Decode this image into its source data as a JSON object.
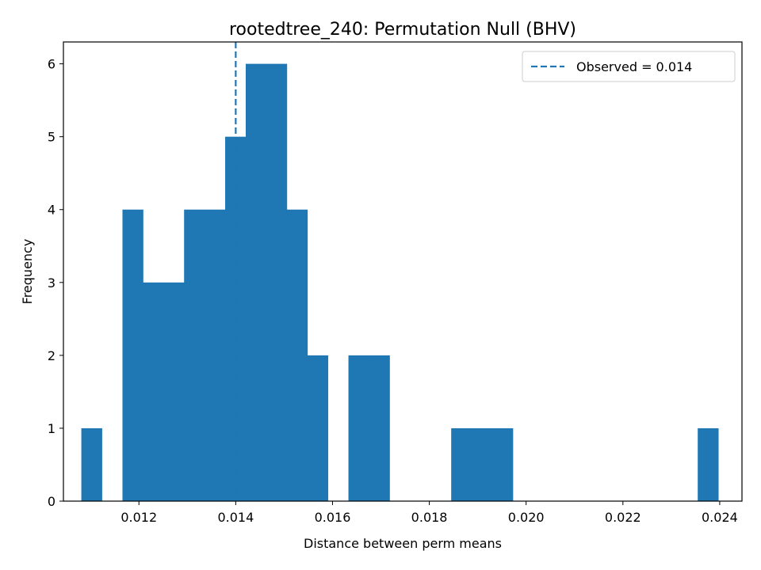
{
  "chart_data": {
    "type": "bar",
    "subtype": "histogram",
    "title": "rootedtree_240: Permutation Null (BHV)",
    "xlabel": "Distance between perm means",
    "ylabel": "Frequency",
    "xlim": [
      0.01044,
      0.02446
    ],
    "ylim": [
      0,
      6.3
    ],
    "xticks": [
      0.012,
      0.014,
      0.016,
      0.018,
      0.02,
      0.022,
      0.024
    ],
    "xtick_labels": [
      "0.012",
      "0.014",
      "0.016",
      "0.018",
      "0.020",
      "0.022",
      "0.024"
    ],
    "yticks": [
      0,
      1,
      2,
      3,
      4,
      5,
      6
    ],
    "ytick_labels": [
      "0",
      "1",
      "2",
      "3",
      "4",
      "5",
      "6"
    ],
    "bar_color": "#1f77b4",
    "bin_width": 0.0004245,
    "bin_starts": [
      0.01081,
      0.011235,
      0.01166,
      0.012084,
      0.012509,
      0.012933,
      0.013358,
      0.013782,
      0.014207,
      0.014631,
      0.015056,
      0.01548,
      0.015905,
      0.016329,
      0.016754,
      0.017178,
      0.017603,
      0.018027,
      0.018452,
      0.018876,
      0.019301,
      0.019725,
      0.02015,
      0.020574,
      0.020999,
      0.021423,
      0.021848,
      0.022272,
      0.022697,
      0.023121,
      0.023546
    ],
    "counts": [
      1,
      0,
      4,
      3,
      3,
      4,
      4,
      5,
      6,
      6,
      4,
      2,
      0,
      2,
      2,
      0,
      0,
      0,
      1,
      1,
      1,
      0,
      0,
      0,
      0,
      0,
      0,
      0,
      0,
      0,
      1
    ],
    "observed": {
      "value": 0.014,
      "label": "Observed = 0.014",
      "color": "#1f77b4",
      "style": "dashed"
    },
    "legend": {
      "placement": "top-right"
    },
    "grid": false
  }
}
